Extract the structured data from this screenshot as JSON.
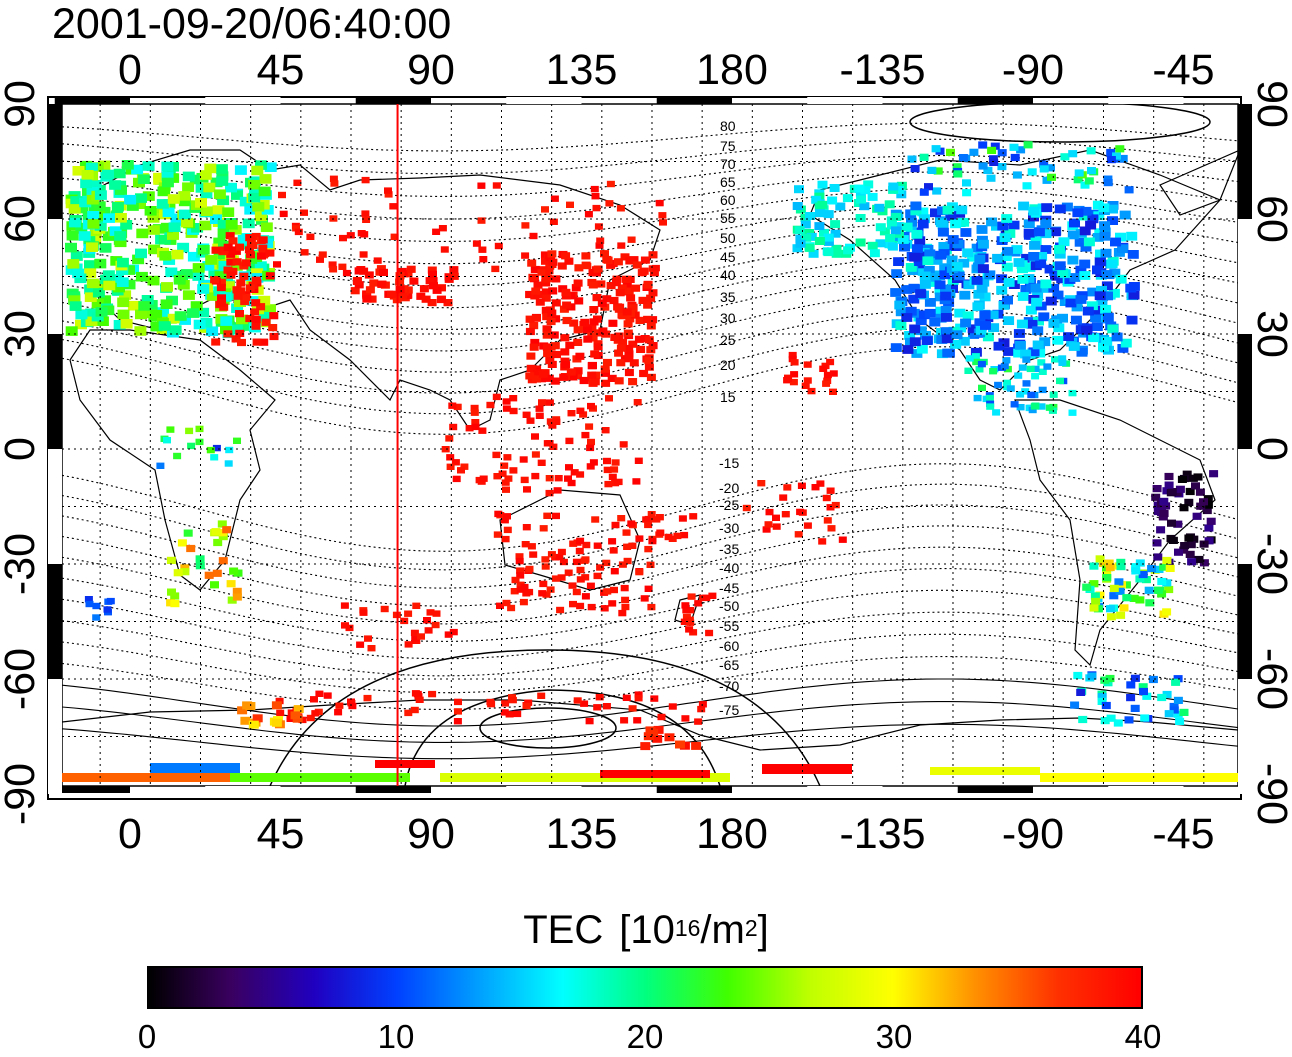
{
  "title": "2001-09-20/06:40:00",
  "map": {
    "lon_ticks": [
      "0",
      "45",
      "90",
      "135",
      "180",
      "-135",
      "-90",
      "-45"
    ],
    "lat_ticks": [
      "90",
      "60",
      "30",
      "0",
      "-30",
      "-60",
      "-90"
    ],
    "contour_labels_north": [
      "80",
      "75",
      "70",
      "65",
      "60",
      "55",
      "50",
      "45",
      "40",
      "35",
      "30",
      "25",
      "20",
      "15"
    ],
    "contour_labels_south": [
      "-15",
      "-20",
      "-25",
      "-30",
      "-35",
      "-40",
      "-45",
      "-50",
      "-55",
      "-60",
      "-65",
      "-70",
      "-75"
    ],
    "marker_longitude": 80,
    "colors": {
      "marker_line": "#ff0000",
      "grid": "#000000",
      "coast": "#000000"
    }
  },
  "colorbar": {
    "title_main": "TEC",
    "title_unit_a": "[10",
    "title_unit_sup1": "16",
    "title_unit_b": "/m",
    "title_unit_sup2": "2",
    "title_unit_c": "]",
    "min": 0,
    "max": 40,
    "tick_labels": [
      "0",
      "10",
      "20",
      "30",
      "40"
    ],
    "colormap": [
      "#000000",
      "#3a0060",
      "#2000c0",
      "#0040ff",
      "#00a0ff",
      "#00ffff",
      "#00ff80",
      "#40ff00",
      "#c0ff00",
      "#ffff00",
      "#ff9000",
      "#ff3000",
      "#ff0000"
    ]
  }
}
